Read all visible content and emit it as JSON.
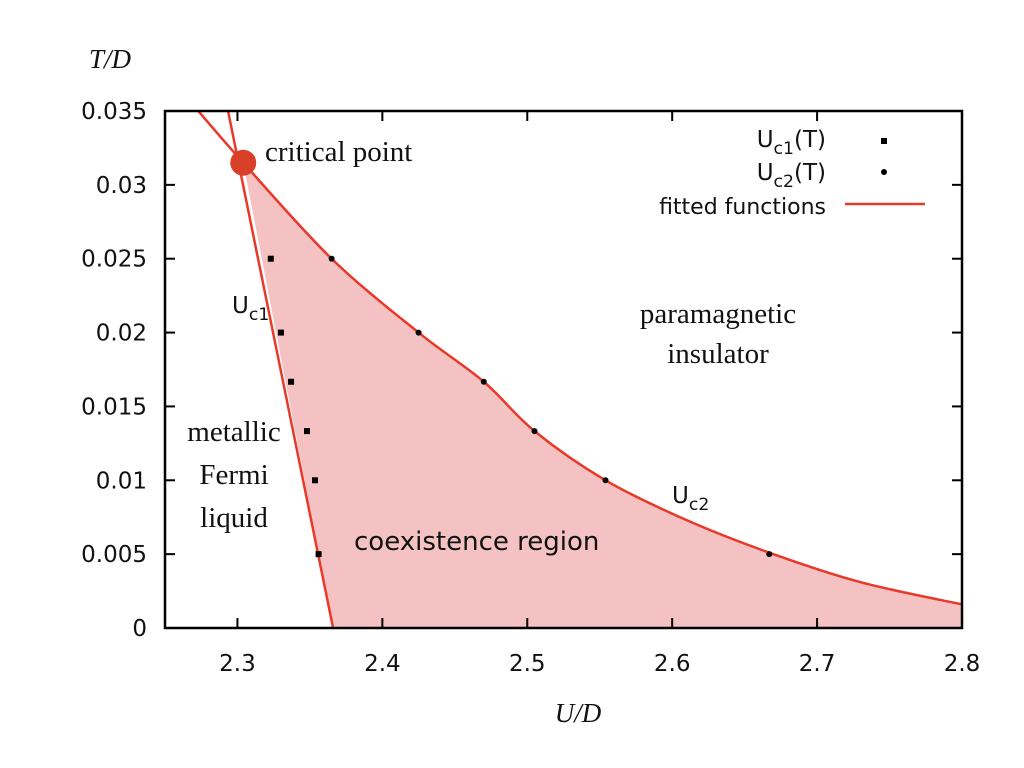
{
  "chart_data": {
    "type": "scatter",
    "title": "",
    "xlabel": "U/D",
    "ylabel": "T/D",
    "xlim": [
      2.25,
      2.8
    ],
    "ylim": [
      0,
      0.035
    ],
    "xticks": [
      "2.3",
      "2.4",
      "2.5",
      "2.6",
      "2.7",
      "2.8"
    ],
    "xtick_values": [
      2.3,
      2.4,
      2.5,
      2.6,
      2.7,
      2.8
    ],
    "yticks": [
      "0",
      "0.005",
      "0.01",
      "0.015",
      "0.02",
      "0.025",
      "0.03",
      "0.035"
    ],
    "ytick_values": [
      0,
      0.005,
      0.01,
      0.015,
      0.02,
      0.025,
      0.03,
      0.035
    ],
    "grid": false,
    "legend_position": "top-right",
    "series": [
      {
        "name": "Uc1(T)",
        "label": {
          "main": "U",
          "sub": "c1",
          "tail": "(T)"
        },
        "marker": "square",
        "color": "#000000",
        "x": [
          2.323,
          2.33,
          2.337,
          2.348,
          2.3535,
          2.356
        ],
        "y": [
          0.025,
          0.02,
          0.01667,
          0.01333,
          0.01,
          0.005
        ]
      },
      {
        "name": "Uc2(T)",
        "label": {
          "main": "U",
          "sub": "c2",
          "tail": "(T)"
        },
        "marker": "circle",
        "color": "#000000",
        "x": [
          2.365,
          2.425,
          2.47,
          2.505,
          2.554,
          2.667
        ],
        "y": [
          0.025,
          0.02,
          0.01667,
          0.01333,
          0.01,
          0.005
        ]
      }
    ],
    "fitted_functions": {
      "label": "fitted functions",
      "color": "#e8392a",
      "uc1": {
        "x": [
          2.2935,
          2.304,
          2.366
        ],
        "y": [
          0.035,
          0.0315,
          0.0
        ]
      },
      "uc2": {
        "x": [
          2.273,
          2.304,
          2.365,
          2.425,
          2.47,
          2.505,
          2.554,
          2.61,
          2.667,
          2.73,
          2.8
        ],
        "y": [
          0.035,
          0.0315,
          0.025,
          0.02,
          0.01667,
          0.01333,
          0.01,
          0.0073,
          0.0051,
          0.0031,
          0.0016
        ]
      }
    },
    "region_fill": "#f4c2c2",
    "critical_point": {
      "x": 2.304,
      "y": 0.0315,
      "color": "#d9402a",
      "label": "critical point"
    },
    "annotations": {
      "paramagnetic": [
        "paramagnetic",
        "insulator"
      ],
      "metallic": [
        "metallic",
        "Fermi",
        "liquid"
      ],
      "coexistence": "coexistence region",
      "uc1": {
        "main": "U",
        "sub": "c1"
      },
      "uc2": {
        "main": "U",
        "sub": "c2"
      }
    }
  }
}
